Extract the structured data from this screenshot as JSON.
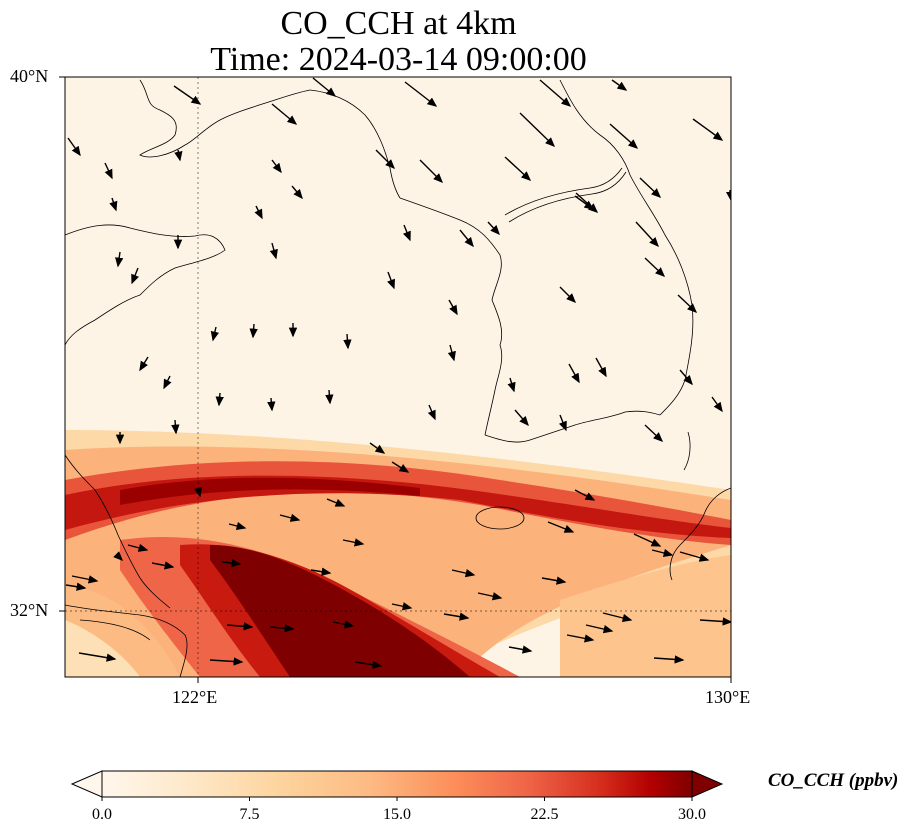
{
  "title_line1": "CO_CCH at 4km",
  "title_line2": "Time: 2024-03-14 09:00:00",
  "axes": {
    "lat_ticks": [
      "40°N",
      "32°N"
    ],
    "lon_ticks": [
      "122°E",
      "130°E"
    ],
    "lon_range": [
      120,
      130
    ],
    "lat_range": [
      31,
      40
    ],
    "gridline_style": "dotted"
  },
  "colorbar": {
    "label": "CO_CCH (ppbv)",
    "ticks": [
      "0.0",
      "7.5",
      "15.0",
      "22.5",
      "30.0"
    ],
    "vmin": 0,
    "vmax": 30,
    "extend": "both",
    "colormap": "OrRd"
  },
  "legend_placement": "bottom",
  "chart_data": {
    "type": "heatmap",
    "variable": "CO_CCH",
    "plume": {
      "description_shape": "high-concentration band crossing the southern part of the domain",
      "peak_value": 30
    },
    "wind_vectors": "northwesterly flow in the north, westerly flow in the south"
  }
}
